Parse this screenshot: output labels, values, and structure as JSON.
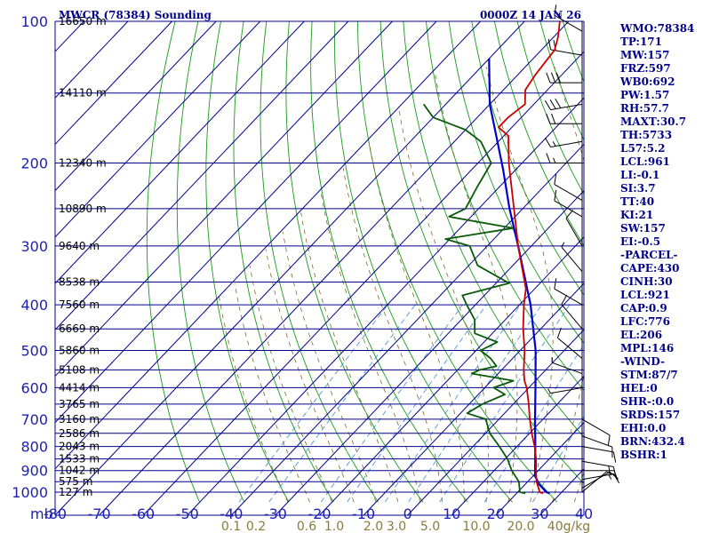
{
  "header": {
    "title": "MWCR (78384) Sounding",
    "time": "0000Z 14 JAN 26"
  },
  "indices": [
    "WMO:78384",
    "TP:171",
    "MW:157",
    "FRZ:597",
    "WB0:692",
    "PW:1.57",
    "RH:57.7",
    "MAXT:30.7",
    "TH:5733",
    "L57:5.2",
    "LCL:961",
    "LI:-0.1",
    "SI:3.7",
    "TT:40",
    "KI:21",
    "SW:157",
    "EI:-0.5",
    "-PARCEL-",
    "CAPE:430",
    "CINH:30",
    "LCL:921",
    "CAP:0.9",
    "LFC:776",
    "EL:206",
    "MPL:146",
    "-WIND-",
    "STM:87/7",
    "HEL:0",
    "SHR-:0.0",
    "SRDS:157",
    "EHI:0.0",
    "BRN:432.4",
    "BSHR:1"
  ],
  "colors": {
    "grid": "#00008b",
    "dry_adiabat": "#1a9a1a",
    "moist_adiabat": "#7a6a2a",
    "mixing_ratio": "#3a8ad8",
    "temperature": "#cc0000",
    "dewpoint": "#0a5a0a",
    "parcel": "#0000cc",
    "wind": "#000000"
  },
  "chart_data": {
    "type": "skew-t",
    "title": "MWCR (78384) Sounding",
    "pressure_axis_label": "mb",
    "pressure_ticks": [
      100,
      200,
      300,
      400,
      500,
      600,
      700,
      800,
      900,
      1000
    ],
    "temperature_ticks": [
      -80,
      -70,
      -60,
      -50,
      -40,
      -30,
      -20,
      -10,
      0,
      10,
      20,
      30,
      40
    ],
    "temperature_tick_labels": [
      "-80",
      "-70",
      "-60",
      "-50",
      "-40",
      "-30",
      "-20",
      "-10",
      "0",
      "10",
      "20",
      "30",
      "40"
    ],
    "mixing_ratio_labels": [
      "0.1",
      "0.2",
      "0.6",
      "1.0",
      "2.0",
      "3.0",
      "5.0",
      "10.0",
      "20.0"
    ],
    "mixing_ratio_unit": "g/kg",
    "height_labels": [
      {
        "p": 100,
        "label": "16650 m"
      },
      {
        "p": 142,
        "label": "14110 m"
      },
      {
        "p": 200,
        "label": "12340 m"
      },
      {
        "p": 250,
        "label": "10890 m"
      },
      {
        "p": 300,
        "label": "9640 m"
      },
      {
        "p": 358,
        "label": "8538 m"
      },
      {
        "p": 400,
        "label": "7560 m"
      },
      {
        "p": 450,
        "label": "6669 m"
      },
      {
        "p": 500,
        "label": "5860 m"
      },
      {
        "p": 550,
        "label": "5108 m"
      },
      {
        "p": 600,
        "label": "4414 m"
      },
      {
        "p": 650,
        "label": "3765 m"
      },
      {
        "p": 700,
        "label": "3160 m"
      },
      {
        "p": 750,
        "label": "2586 m"
      },
      {
        "p": 800,
        "label": "2043 m"
      },
      {
        "p": 850,
        "label": "1533 m"
      },
      {
        "p": 900,
        "label": "1042 m"
      },
      {
        "p": 950,
        "label": "575 m"
      },
      {
        "p": 1000,
        "label": "127 m"
      }
    ],
    "temperature": [
      {
        "p": 1006,
        "t": 26
      },
      {
        "p": 1000,
        "t": 25
      },
      {
        "p": 950,
        "t": 22
      },
      {
        "p": 900,
        "t": 19.5
      },
      {
        "p": 850,
        "t": 17
      },
      {
        "p": 800,
        "t": 14
      },
      {
        "p": 750,
        "t": 10.5
      },
      {
        "p": 700,
        "t": 7
      },
      {
        "p": 650,
        "t": 3.5
      },
      {
        "p": 600,
        "t": -0.5
      },
      {
        "p": 580,
        "t": -2.5
      },
      {
        "p": 550,
        "t": -5
      },
      {
        "p": 500,
        "t": -9
      },
      {
        "p": 450,
        "t": -14
      },
      {
        "p": 400,
        "t": -19
      },
      {
        "p": 370,
        "t": -22
      },
      {
        "p": 300,
        "t": -33
      },
      {
        "p": 250,
        "t": -42
      },
      {
        "p": 200,
        "t": -53
      },
      {
        "p": 175,
        "t": -59
      },
      {
        "p": 168,
        "t": -63
      },
      {
        "p": 160,
        "t": -63
      },
      {
        "p": 150,
        "t": -62
      },
      {
        "p": 140,
        "t": -65
      },
      {
        "p": 130,
        "t": -66
      },
      {
        "p": 115,
        "t": -67
      },
      {
        "p": 108,
        "t": -69
      },
      {
        "p": 100,
        "t": -72
      }
    ],
    "dewpoint": [
      {
        "p": 1006,
        "t": 22
      },
      {
        "p": 1000,
        "t": 20.5
      },
      {
        "p": 950,
        "t": 18
      },
      {
        "p": 900,
        "t": 14
      },
      {
        "p": 850,
        "t": 10.5
      },
      {
        "p": 800,
        "t": 6
      },
      {
        "p": 750,
        "t": 1
      },
      {
        "p": 700,
        "t": -3
      },
      {
        "p": 680,
        "t": -8.5
      },
      {
        "p": 650,
        "t": -7
      },
      {
        "p": 620,
        "t": -4
      },
      {
        "p": 600,
        "t": -8
      },
      {
        "p": 580,
        "t": -5
      },
      {
        "p": 560,
        "t": -16
      },
      {
        "p": 550,
        "t": -15
      },
      {
        "p": 540,
        "t": -12
      },
      {
        "p": 520,
        "t": -15
      },
      {
        "p": 500,
        "t": -19
      },
      {
        "p": 480,
        "t": -17
      },
      {
        "p": 460,
        "t": -24
      },
      {
        "p": 430,
        "t": -27
      },
      {
        "p": 400,
        "t": -32
      },
      {
        "p": 382,
        "t": -35
      },
      {
        "p": 360,
        "t": -27
      },
      {
        "p": 330,
        "t": -38
      },
      {
        "p": 300,
        "t": -44
      },
      {
        "p": 290,
        "t": -51
      },
      {
        "p": 275,
        "t": -38
      },
      {
        "p": 260,
        "t": -55
      },
      {
        "p": 250,
        "t": -53
      },
      {
        "p": 225,
        "t": -55
      },
      {
        "p": 200,
        "t": -57
      },
      {
        "p": 180,
        "t": -64
      },
      {
        "p": 170,
        "t": -70
      },
      {
        "p": 160,
        "t": -80
      },
      {
        "p": 150,
        "t": -85
      }
    ],
    "parcel": [
      {
        "p": 1006,
        "t": 27.5
      },
      {
        "p": 1000,
        "t": 26.5
      },
      {
        "p": 961,
        "t": 23
      },
      {
        "p": 921,
        "t": 20.3
      },
      {
        "p": 850,
        "t": 16.8
      },
      {
        "p": 776,
        "t": 12.8
      },
      {
        "p": 700,
        "t": 8.2
      },
      {
        "p": 600,
        "t": 1.5
      },
      {
        "p": 500,
        "t": -6.5
      },
      {
        "p": 400,
        "t": -17.5
      },
      {
        "p": 300,
        "t": -33
      },
      {
        "p": 250,
        "t": -43
      },
      {
        "p": 206,
        "t": -53
      },
      {
        "p": 150,
        "t": -70
      },
      {
        "p": 120,
        "t": -80
      }
    ],
    "wind_levels": [
      {
        "p": 105,
        "dir": 300,
        "spd": 15
      },
      {
        "p": 118,
        "dir": 280,
        "spd": 20
      },
      {
        "p": 135,
        "dir": 270,
        "spd": 30
      },
      {
        "p": 150,
        "dir": 260,
        "spd": 30
      },
      {
        "p": 165,
        "dir": 270,
        "spd": 20
      },
      {
        "p": 180,
        "dir": 260,
        "spd": 15
      },
      {
        "p": 200,
        "dir": 270,
        "spd": 15
      },
      {
        "p": 240,
        "dir": 300,
        "spd": 10
      },
      {
        "p": 260,
        "dir": 300,
        "spd": 10
      },
      {
        "p": 300,
        "dir": 330,
        "spd": 10
      },
      {
        "p": 340,
        "dir": 320,
        "spd": 5
      },
      {
        "p": 400,
        "dir": 300,
        "spd": 10
      },
      {
        "p": 450,
        "dir": 320,
        "spd": 10
      },
      {
        "p": 520,
        "dir": 310,
        "spd": 10
      },
      {
        "p": 560,
        "dir": 290,
        "spd": 5
      },
      {
        "p": 600,
        "dir": 260,
        "spd": 5
      },
      {
        "p": 700,
        "dir": 120,
        "spd": 10
      },
      {
        "p": 760,
        "dir": 110,
        "spd": 10
      },
      {
        "p": 800,
        "dir": 100,
        "spd": 10
      },
      {
        "p": 860,
        "dir": 100,
        "spd": 15
      },
      {
        "p": 900,
        "dir": 90,
        "spd": 15
      },
      {
        "p": 940,
        "dir": 80,
        "spd": 15
      },
      {
        "p": 980,
        "dir": 60,
        "spd": 10
      },
      {
        "p": 1000,
        "dir": 50,
        "spd": 5
      }
    ]
  }
}
